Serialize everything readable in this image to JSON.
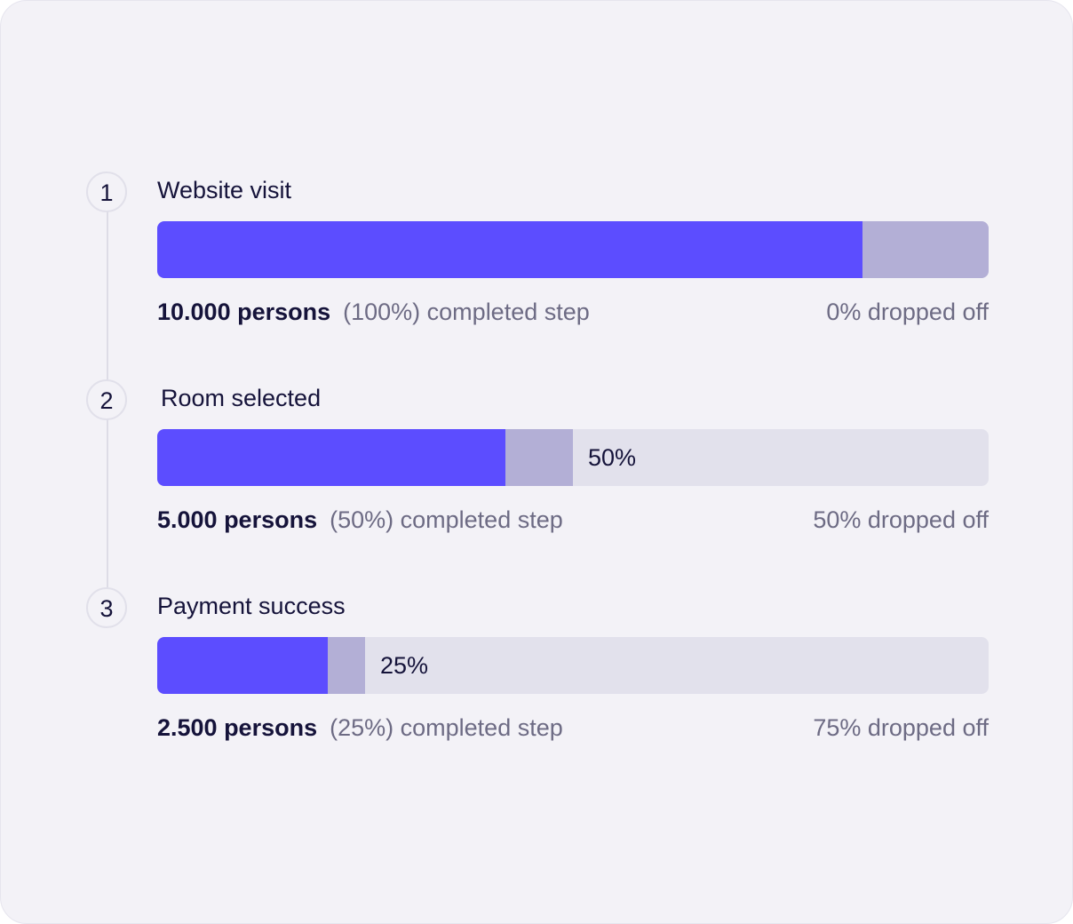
{
  "chart_data": {
    "type": "bar",
    "steps": [
      {
        "number": "1",
        "name": "Website visit",
        "persons_label": "10.000 persons",
        "completed_label": "(100%) completed step",
        "dropped_label": "0% dropped off",
        "completed_fraction": 0.848,
        "dropped_fraction": 0.152,
        "bar_label": ""
      },
      {
        "number": "2",
        "name": "Room selected",
        "persons_label": "5.000 persons",
        "completed_label": "(50%) completed step",
        "dropped_label": "50% dropped off",
        "completed_fraction": 0.419,
        "dropped_fraction": 0.081,
        "bar_label": "50%"
      },
      {
        "number": "3",
        "name": "Payment success",
        "persons_label": "2.500 persons",
        "completed_label": "(25%) completed step",
        "dropped_label": "75% dropped off",
        "completed_fraction": 0.205,
        "dropped_fraction": 0.045,
        "bar_label": "25%"
      }
    ]
  },
  "colors": {
    "completed": "#5c4dff",
    "dropped": "#b3afd6",
    "track": "#e2e1ec",
    "background": "#f3f2f7",
    "text_primary": "#15133a",
    "text_secondary": "#6d6b84"
  }
}
